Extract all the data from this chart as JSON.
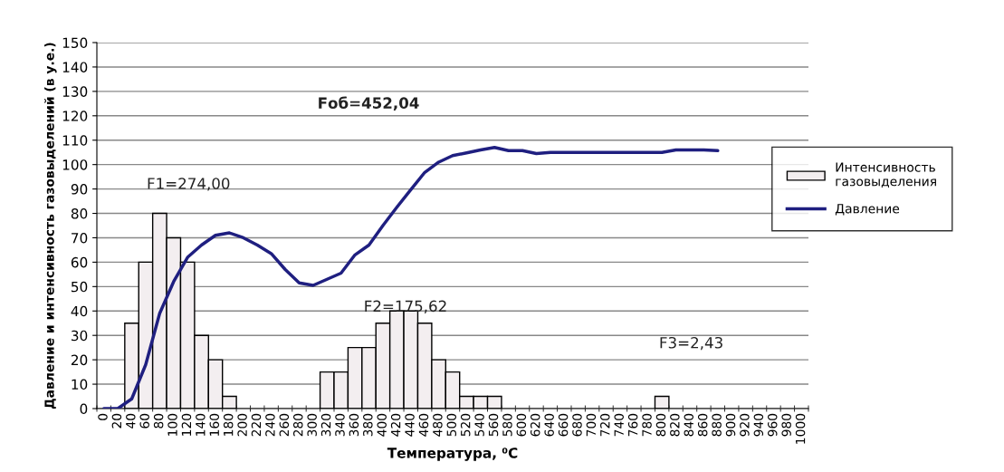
{
  "chart_data": {
    "type": "bar",
    "xlabel": "Температура, ⁰C",
    "ylabel": "Давление и интенсивность газовыделений (в у.е.)",
    "categories": [
      "0",
      "20",
      "40",
      "60",
      "80",
      "100",
      "120",
      "140",
      "160",
      "180",
      "200",
      "220",
      "240",
      "260",
      "280",
      "300",
      "320",
      "340",
      "360",
      "380",
      "400",
      "420",
      "440",
      "460",
      "480",
      "500",
      "520",
      "540",
      "560",
      "580",
      "600",
      "620",
      "640",
      "660",
      "680",
      "700",
      "720",
      "740",
      "760",
      "780",
      "800",
      "820",
      "840",
      "860",
      "880",
      "900",
      "920",
      "940",
      "960",
      "980",
      "1000"
    ],
    "series": [
      {
        "name": "Интенсивность газовыделения",
        "color": "#f3eef0",
        "values": [
          null,
          null,
          35,
          60,
          80,
          70,
          60,
          30,
          20,
          5,
          null,
          null,
          null,
          null,
          null,
          null,
          15,
          15,
          25,
          25,
          35,
          40,
          40,
          35,
          20,
          15,
          5,
          5,
          5,
          null,
          null,
          null,
          null,
          null,
          null,
          null,
          null,
          null,
          null,
          null,
          5,
          null,
          null,
          null,
          null,
          null,
          null,
          null,
          null,
          null,
          null
        ]
      },
      {
        "name": "Давление",
        "type": "line",
        "color": "#1f1f80",
        "values": [
          0,
          0,
          4,
          18,
          39,
          52,
          62,
          67,
          71,
          72,
          70,
          67,
          63.5,
          57,
          51.5,
          50.5,
          53,
          55.5,
          63,
          67,
          75,
          82.5,
          89.7,
          96.8,
          101,
          103.7,
          104.8,
          106,
          107,
          105.7,
          105.7,
          104.5,
          105,
          105,
          105,
          105,
          105,
          105,
          105,
          105,
          105,
          106,
          106,
          106,
          105.7,
          null,
          null,
          null,
          null,
          null,
          null
        ]
      }
    ],
    "ylim": [
      0,
      150
    ],
    "yticks": [
      0,
      10,
      20,
      30,
      40,
      50,
      60,
      70,
      80,
      90,
      100,
      110,
      120,
      130,
      140,
      150
    ],
    "grid": "y",
    "legend": "right",
    "annotations": [
      "Fоб=452,04",
      "F1=274,00",
      "F2=175,62",
      "F3=2,43"
    ]
  }
}
